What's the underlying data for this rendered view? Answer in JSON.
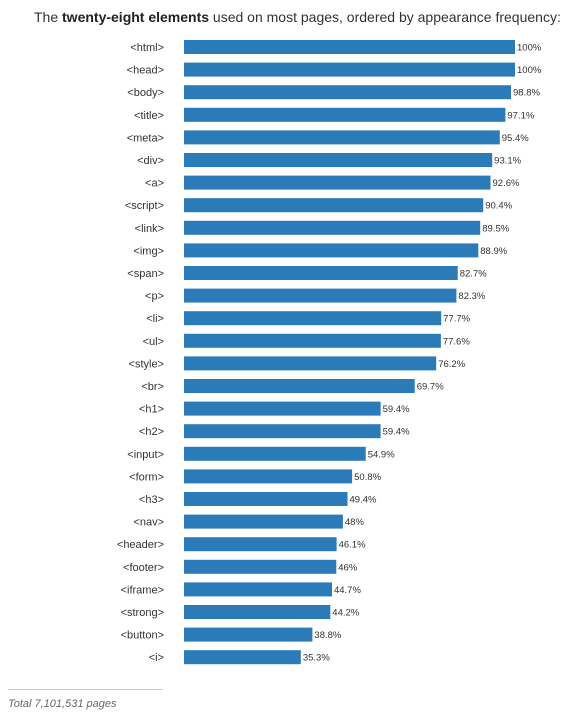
{
  "header": {
    "title_before": "The ",
    "title_bold": "twenty-eight elements",
    "title_after": " used on most pages, ordered by appearance frequency:"
  },
  "footer": {
    "note": "Total 7,101,531 pages"
  },
  "colors": {
    "bar": "#2b7bb9"
  },
  "chart_data": {
    "type": "bar",
    "orientation": "horizontal",
    "title": "The twenty-eight elements used on most pages, ordered by appearance frequency:",
    "xlim": [
      0,
      100
    ],
    "grid": false,
    "categories": [
      "<html>",
      "<head>",
      "<body>",
      "<title>",
      "<meta>",
      "<div>",
      "<a>",
      "<script>",
      "<link>",
      "<img>",
      "<span>",
      "<p>",
      "<li>",
      "<ul>",
      "<style>",
      "<br>",
      "<h1>",
      "<h2>",
      "<input>",
      "<form>",
      "<h3>",
      "<nav>",
      "<header>",
      "<footer>",
      "<iframe>",
      "<strong>",
      "<button>",
      "<i>"
    ],
    "values": [
      100,
      100,
      98.8,
      97.1,
      95.4,
      93.1,
      92.6,
      90.4,
      89.5,
      88.9,
      82.7,
      82.3,
      77.7,
      77.6,
      76.2,
      69.7,
      59.4,
      59.4,
      54.9,
      50.8,
      49.4,
      48,
      46.1,
      46,
      44.7,
      44.2,
      38.8,
      35.3
    ],
    "value_labels": [
      "100%",
      "100%",
      "98.8%",
      "97.1%",
      "95.4%",
      "93.1%",
      "92.6%",
      "90.4%",
      "89.5%",
      "88.9%",
      "82.7%",
      "82.3%",
      "77.7%",
      "77.6%",
      "76.2%",
      "69.7%",
      "59.4%",
      "59.4%",
      "54.9%",
      "50.8%",
      "49.4%",
      "48%",
      "46.1%",
      "46%",
      "44.7%",
      "44.2%",
      "38.8%",
      "35.3%"
    ]
  }
}
